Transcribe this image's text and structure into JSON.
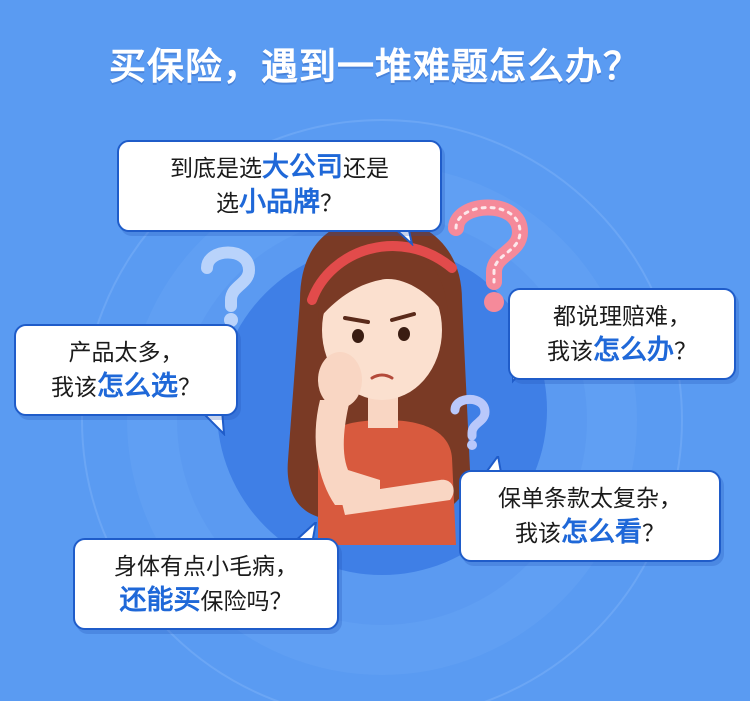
{
  "title": "买保险，遇到一堆难题怎么办？",
  "colors": {
    "background": "#5a9bf2",
    "bubble_border": "#1f5cc9",
    "emphasis": "#1f68d8",
    "question_pink": "#f58a9a",
    "question_blue": "#b9d3fb"
  },
  "bubbles": {
    "company": {
      "line1_prefix": "到底是选",
      "line1_em": "大公司",
      "line1_suffix": "还是",
      "line2_prefix": "选",
      "line2_em": "小品牌",
      "line2_suffix": "？"
    },
    "choice": {
      "line1": "产品太多，",
      "line2_prefix": "我该",
      "line2_em": "怎么选",
      "line2_suffix": "？"
    },
    "claim": {
      "line1": "都说理赔难，",
      "line2_prefix": "我该",
      "line2_em": "怎么办",
      "line2_suffix": "？"
    },
    "terms": {
      "line1": "保单条款太复杂，",
      "line2_prefix": "我该",
      "line2_em": "怎么看",
      "line2_suffix": "？"
    },
    "health": {
      "line1": "身体有点小毛病，",
      "line2_em": "还能买",
      "line2_suffix": "保险吗？"
    }
  },
  "icons": [
    "question-mark-icon",
    "girl-thinking-illustration"
  ]
}
